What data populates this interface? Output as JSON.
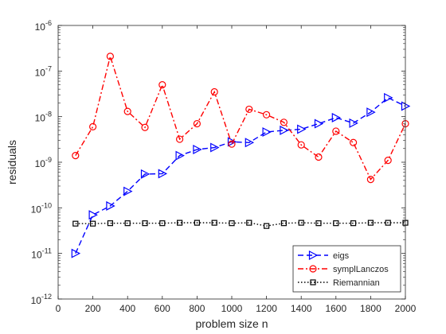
{
  "chart_data": {
    "type": "line",
    "title": "",
    "xlabel": "problem size n",
    "ylabel": "residuals",
    "xlim": [
      0,
      2000
    ],
    "ylim": [
      1e-12,
      1e-06
    ],
    "yscale": "log",
    "grid": false,
    "legend_position": "bottom-right",
    "x_ticks": [
      "0",
      "200",
      "400",
      "600",
      "800",
      "1000",
      "1200",
      "1400",
      "1600",
      "1800",
      "2000"
    ],
    "y_ticks": [
      {
        "base": "10",
        "exp": "-12"
      },
      {
        "base": "10",
        "exp": "-11"
      },
      {
        "base": "10",
        "exp": "-10"
      },
      {
        "base": "10",
        "exp": "-9"
      },
      {
        "base": "10",
        "exp": "-8"
      },
      {
        "base": "10",
        "exp": "-7"
      },
      {
        "base": "10",
        "exp": "-6"
      }
    ],
    "x": [
      100,
      200,
      300,
      400,
      500,
      600,
      700,
      800,
      900,
      1000,
      1100,
      1200,
      1300,
      1400,
      1500,
      1600,
      1700,
      1800,
      1900,
      2000
    ],
    "series": [
      {
        "name": "eigs",
        "color": "#0000ff",
        "line_style": "dashed",
        "marker": "triangle-right",
        "values": [
          1e-11,
          7e-11,
          1.1e-10,
          2.3e-10,
          5.5e-10,
          5.6e-10,
          1.4e-09,
          1.9e-09,
          2.1e-09,
          2.8e-09,
          2.7e-09,
          4.6e-09,
          5e-09,
          5.3e-09,
          7e-09,
          9.5e-09,
          7.2e-09,
          1.25e-08,
          2.6e-08,
          1.7e-08
        ]
      },
      {
        "name": "symplLanczos",
        "color": "#ff0000",
        "line_style": "dashdot",
        "marker": "circle",
        "values": [
          1.4e-09,
          6e-09,
          2.1e-07,
          1.3e-08,
          5.8e-09,
          5e-08,
          3.2e-09,
          7e-09,
          3.5e-08,
          2.5e-09,
          1.45e-08,
          1.1e-08,
          7.5e-09,
          2.4e-09,
          1.3e-09,
          4.8e-09,
          2.7e-09,
          4.2e-10,
          1.1e-09,
          7e-09
        ]
      },
      {
        "name": "Riemannian",
        "color": "#000000",
        "line_style": "dotted",
        "marker": "square",
        "values": [
          4.5e-11,
          4.5e-11,
          4.6e-11,
          4.6e-11,
          4.6e-11,
          4.6e-11,
          4.7e-11,
          4.7e-11,
          4.7e-11,
          4.6e-11,
          4.7e-11,
          4e-11,
          4.6e-11,
          4.7e-11,
          4.6e-11,
          4.6e-11,
          4.6e-11,
          4.7e-11,
          4.7e-11,
          4.7e-11
        ]
      }
    ]
  }
}
